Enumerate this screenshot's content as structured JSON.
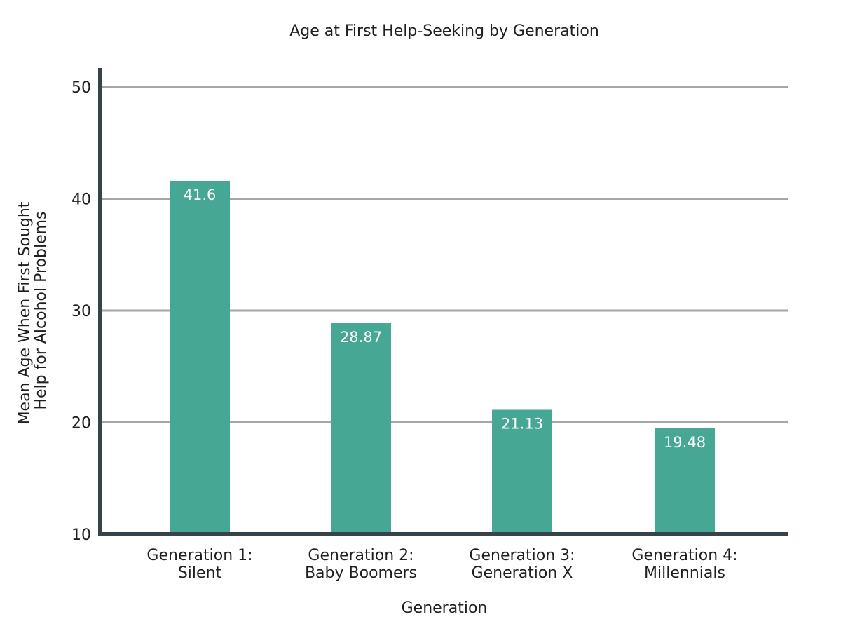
{
  "chart_data": {
    "type": "bar",
    "title": "Age at First Help-Seeking by Generation",
    "xlabel": "Generation",
    "ylabel_lines": [
      "Mean Age When First Sought",
      "Help for Alcohol Problems"
    ],
    "categories": [
      [
        "Generation 1:",
        "Silent"
      ],
      [
        "Generation 2:",
        "Baby Boomers"
      ],
      [
        "Generation 3:",
        "Generation X"
      ],
      [
        "Generation 4:",
        "Millennials"
      ]
    ],
    "values": [
      41.6,
      28.87,
      21.13,
      19.48
    ],
    "data_labels": [
      "41.6",
      "28.87",
      "21.13",
      "19.48"
    ],
    "ylim": [
      10,
      50
    ],
    "yticks": [
      10,
      20,
      30,
      40,
      50
    ],
    "grid": true,
    "bar_color": "#45a794",
    "label_color": "#ffffff",
    "axis_color": "#36434a",
    "grid_color": "#a6a6a6"
  }
}
